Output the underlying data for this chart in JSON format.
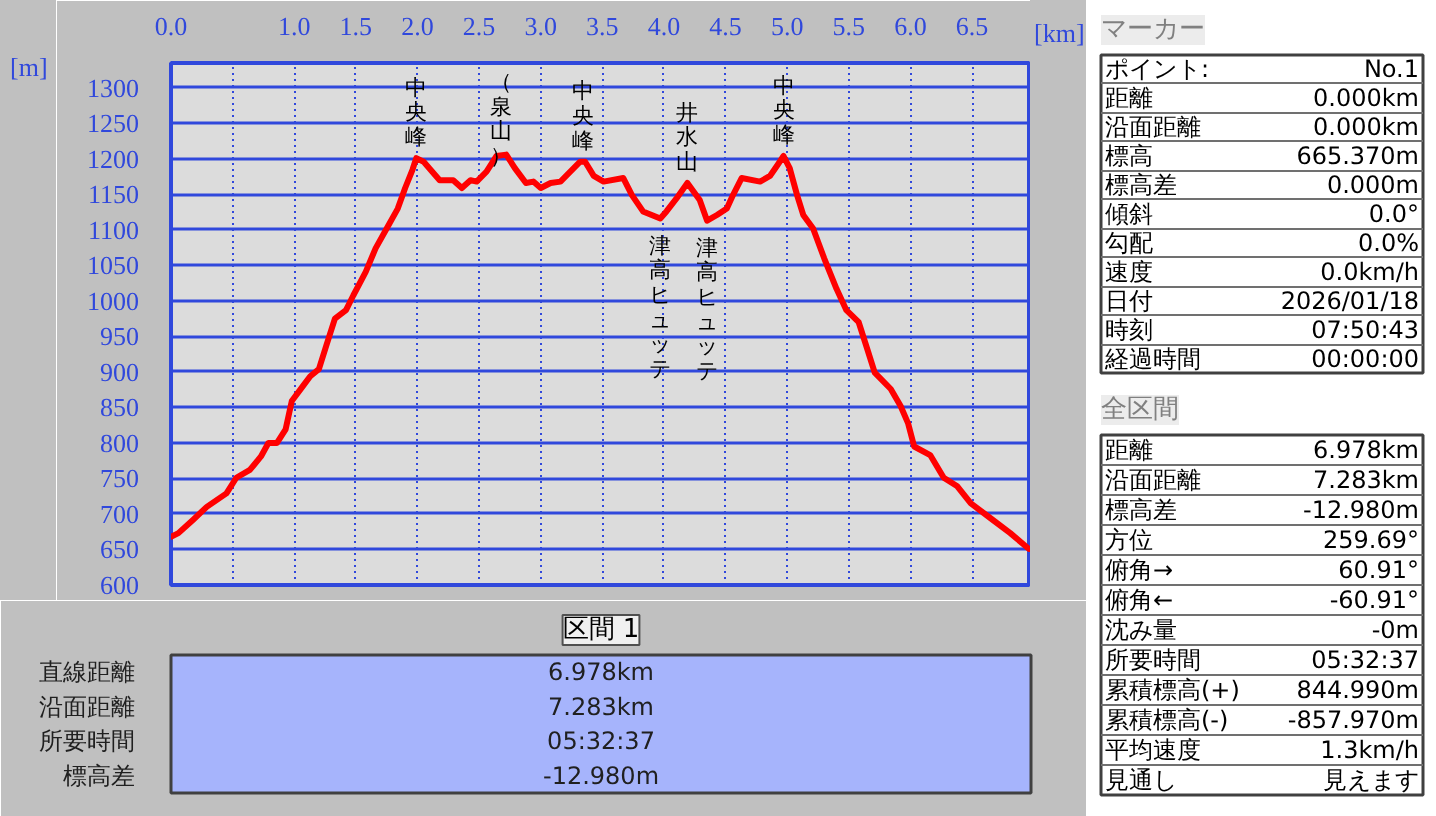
{
  "chart_data": [
    {
      "type": "line",
      "xlabel": "[km]",
      "ylabel": "[m]",
      "x": [
        0,
        0.06,
        0.18,
        0.29,
        0.45,
        0.53,
        0.64,
        0.73,
        0.79,
        0.86,
        0.93,
        0.98,
        1.07,
        1.13,
        1.2,
        1.26,
        1.33,
        1.42,
        1.48,
        1.58,
        1.66,
        1.75,
        1.84,
        1.9,
        1.96,
        1.99,
        2.05,
        2.12,
        2.18,
        2.29,
        2.36,
        2.43,
        2.48,
        2.56,
        2.64,
        2.72,
        2.79,
        2.88,
        2.94,
        3.0,
        3.08,
        3.16,
        3.24,
        3.32,
        3.36,
        3.43,
        3.51,
        3.67,
        3.74,
        3.83,
        3.97,
        4.02,
        4.1,
        4.19,
        4.24,
        4.29,
        4.35,
        4.43,
        4.51,
        4.56,
        4.63,
        4.78,
        4.86,
        4.92,
        4.97,
        5.02,
        5.08,
        5.13,
        5.21,
        5.3,
        5.4,
        5.48,
        5.58,
        5.65,
        5.71,
        5.84,
        5.92,
        5.98,
        6.03,
        6.16,
        6.27,
        6.38,
        6.49,
        6.65,
        6.81,
        6.96
      ],
      "series": [
        {
          "color": "#ff0000",
          "values": [
            668,
            673,
            692,
            710,
            729,
            751,
            762,
            781,
            800,
            800,
            819,
            859,
            880,
            894,
            904,
            937,
            975,
            987,
            1008,
            1041,
            1074,
            1102,
            1130,
            1159,
            1185,
            1201,
            1196,
            1182,
            1170,
            1170,
            1159,
            1170,
            1168,
            1182,
            1204,
            1206,
            1187,
            1166,
            1168,
            1159,
            1166,
            1168,
            1182,
            1196,
            1196,
            1176,
            1168,
            1173,
            1149,
            1126,
            1116,
            1126,
            1144,
            1166,
            1154,
            1142,
            1113,
            1121,
            1130,
            1149,
            1173,
            1168,
            1176,
            1191,
            1204,
            1187,
            1149,
            1121,
            1102,
            1060,
            1017,
            987,
            970,
            932,
            899,
            876,
            852,
            828,
            795,
            783,
            751,
            739,
            715,
            694,
            673,
            651
          ]
        }
      ],
      "xlim": [
        0,
        6.978
      ],
      "ylim": [
        600,
        1335
      ],
      "xticks": [
        {
          "value": 0,
          "label": "0.0"
        },
        {
          "value": 0.5,
          "label": null
        },
        {
          "value": 1,
          "label": "1.0"
        },
        1.5,
        {
          "value": 2,
          "label": "2.0"
        },
        2.5,
        {
          "value": 3,
          "label": "3.0"
        },
        3.5,
        {
          "value": 4,
          "label": "4.0"
        },
        4.5,
        {
          "value": 5,
          "label": "5.0"
        },
        5.5,
        {
          "value": 6,
          "label": "6.0"
        },
        6.5
      ],
      "yticks": [
        600,
        650,
        700,
        750,
        800,
        850,
        900,
        950,
        1000,
        1050,
        1100,
        1150,
        1200,
        1250,
        1300
      ],
      "grid": true,
      "annotations": [
        {
          "text": "中央峰",
          "x": 1.99,
          "y": 1201
        },
        {
          "text": "（泉山）",
          "x": 2.68,
          "y": 1206
        },
        {
          "text": "中央峰",
          "x": 3.34,
          "y": 1196
        },
        {
          "text": "津高ヒュッテ",
          "x": 3.97,
          "y": 1116
        },
        {
          "text": "井水山",
          "x": 4.19,
          "y": 1166
        },
        {
          "text": "津高ヒュッテ",
          "x": 4.35,
          "y": 1113
        },
        {
          "text": "中央峰",
          "x": 4.97,
          "y": 1204
        }
      ]
    },
    {
      "type": "other",
      "title": "区間 1",
      "annotations": [
        "直線距離",
        "6.978km",
        "沿面距離",
        "7.283km",
        "所要時間",
        "05:32:37",
        "標高差",
        "-12.980m"
      ]
    },
    {
      "type": "other",
      "title": "マーカー",
      "annotations": [
        "ポイント:",
        "No.1",
        "距離",
        "0.000km",
        "沿面距離",
        "0.000km",
        "標高",
        "665.370m",
        "標高差",
        "0.000m",
        "傾斜",
        "0.0°",
        "勾配",
        "0.0%",
        "速度",
        "0.0km/h",
        "日付",
        "2026/01/18",
        "時刻",
        "07:50:43",
        "経過時間",
        "00:00:00"
      ]
    },
    {
      "type": "other",
      "title": "全区間",
      "annotations": [
        "距離",
        "6.978km",
        "沿面距離",
        "7.283km",
        "標高差",
        "-12.980m",
        "方位",
        "259.69°",
        "俯角→",
        "60.91°",
        "俯角←",
        "-60.91°",
        "沈み量",
        "-0m",
        "所要時間",
        "05:32:37",
        "累積標高(+)",
        "844.990m",
        "累積標高(-)",
        "-857.970m",
        "平均速度",
        "1.3km/h",
        "見通し",
        "見えます"
      ]
    }
  ]
}
